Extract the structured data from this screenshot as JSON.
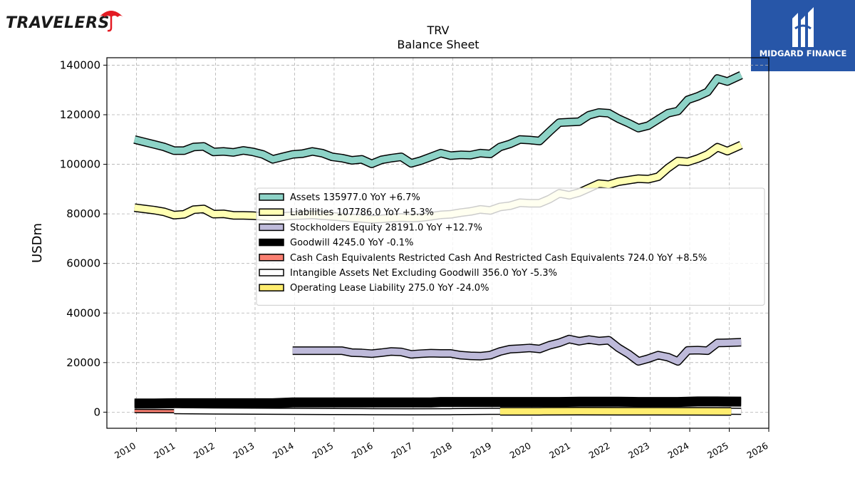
{
  "brand": {
    "left_logo_text": "TRAVELERS",
    "right_logo_text": "MIDGARD FINANCE"
  },
  "chart_data": {
    "type": "line",
    "title": "TRV",
    "subtitle": "Balance  Sheet",
    "ylabel": "USDm",
    "xlabel": "",
    "ylim": [
      -6500,
      143000
    ],
    "xlim": [
      2009.25,
      2026.0
    ],
    "yticks": [
      0,
      20000,
      40000,
      60000,
      80000,
      100000,
      120000,
      140000
    ],
    "ytick_labels": [
      "0",
      "20000",
      "40000",
      "60000",
      "80000",
      "100000",
      "120000",
      "140000"
    ],
    "xticks": [
      2010,
      2011,
      2012,
      2013,
      2014,
      2015,
      2016,
      2017,
      2018,
      2019,
      2020,
      2021,
      2022,
      2023,
      2024,
      2025,
      2026
    ],
    "xtick_labels": [
      "2010",
      "2011",
      "2012",
      "2013",
      "2014",
      "2015",
      "2016",
      "2017",
      "2018",
      "2019",
      "2020",
      "2021",
      "2022",
      "2023",
      "2024",
      "2025",
      "2026"
    ],
    "grid": true,
    "legend_position": "center-right",
    "series": [
      {
        "name": "Assets",
        "legend_label": "Assets  135977.0 YoY +6.7%",
        "color": "#8dd3c7",
        "width": 9,
        "points": [
          [
            2009.95,
            110000
          ],
          [
            2010.2,
            109000
          ],
          [
            2010.45,
            108000
          ],
          [
            2010.7,
            107000
          ],
          [
            2010.95,
            105500
          ],
          [
            2011.2,
            105500
          ],
          [
            2011.45,
            107000
          ],
          [
            2011.7,
            107200
          ],
          [
            2011.95,
            105000
          ],
          [
            2012.2,
            105200
          ],
          [
            2012.45,
            104800
          ],
          [
            2012.7,
            105600
          ],
          [
            2012.95,
            105000
          ],
          [
            2013.2,
            104000
          ],
          [
            2013.45,
            102000
          ],
          [
            2013.7,
            103000
          ],
          [
            2013.95,
            104000
          ],
          [
            2014.2,
            104300
          ],
          [
            2014.45,
            105200
          ],
          [
            2014.7,
            104500
          ],
          [
            2014.95,
            103000
          ],
          [
            2015.2,
            102500
          ],
          [
            2015.45,
            101600
          ],
          [
            2015.7,
            102000
          ],
          [
            2015.95,
            100200
          ],
          [
            2016.2,
            101800
          ],
          [
            2016.45,
            102500
          ],
          [
            2016.7,
            103000
          ],
          [
            2016.95,
            100400
          ],
          [
            2017.2,
            101500
          ],
          [
            2017.45,
            103000
          ],
          [
            2017.7,
            104500
          ],
          [
            2017.95,
            103500
          ],
          [
            2018.2,
            103800
          ],
          [
            2018.45,
            103700
          ],
          [
            2018.7,
            104500
          ],
          [
            2018.95,
            104200
          ],
          [
            2019.2,
            107000
          ],
          [
            2019.45,
            108200
          ],
          [
            2019.7,
            110000
          ],
          [
            2019.95,
            109800
          ],
          [
            2020.2,
            109400
          ],
          [
            2020.45,
            113200
          ],
          [
            2020.7,
            116800
          ],
          [
            2020.95,
            117000
          ],
          [
            2021.2,
            117200
          ],
          [
            2021.45,
            119800
          ],
          [
            2021.7,
            120900
          ],
          [
            2021.95,
            120600
          ],
          [
            2022.2,
            118400
          ],
          [
            2022.45,
            116600
          ],
          [
            2022.7,
            114600
          ],
          [
            2022.95,
            115600
          ],
          [
            2023.2,
            118100
          ],
          [
            2023.45,
            120600
          ],
          [
            2023.7,
            121500
          ],
          [
            2023.95,
            126000
          ],
          [
            2024.2,
            127400
          ],
          [
            2024.45,
            129200
          ],
          [
            2024.7,
            134600
          ],
          [
            2024.95,
            133400
          ],
          [
            2025.3,
            135977
          ]
        ]
      },
      {
        "name": "Liabilities",
        "legend_label": "Liabilities  107786.0 YoY +5.3%",
        "color": "#ffffb3",
        "width": 9,
        "points": [
          [
            2009.95,
            82500
          ],
          [
            2010.2,
            82000
          ],
          [
            2010.45,
            81500
          ],
          [
            2010.7,
            80800
          ],
          [
            2010.95,
            79500
          ],
          [
            2011.2,
            79800
          ],
          [
            2011.45,
            81700
          ],
          [
            2011.7,
            82000
          ],
          [
            2011.95,
            79900
          ],
          [
            2012.2,
            80000
          ],
          [
            2012.45,
            79400
          ],
          [
            2012.7,
            79400
          ],
          [
            2012.95,
            79300
          ],
          [
            2013.2,
            79000
          ],
          [
            2013.45,
            78700
          ],
          [
            2013.7,
            79000
          ],
          [
            2013.95,
            79300
          ],
          [
            2014.2,
            79400
          ],
          [
            2014.45,
            79600
          ],
          [
            2014.7,
            79300
          ],
          [
            2014.95,
            79000
          ],
          [
            2015.2,
            78700
          ],
          [
            2015.45,
            78300
          ],
          [
            2015.7,
            78200
          ],
          [
            2015.95,
            77800
          ],
          [
            2016.2,
            78000
          ],
          [
            2016.45,
            78300
          ],
          [
            2016.7,
            78500
          ],
          [
            2016.95,
            78300
          ],
          [
            2017.2,
            78500
          ],
          [
            2017.45,
            79000
          ],
          [
            2017.7,
            79600
          ],
          [
            2017.95,
            79800
          ],
          [
            2018.2,
            80500
          ],
          [
            2018.45,
            81000
          ],
          [
            2018.7,
            81800
          ],
          [
            2018.95,
            81400
          ],
          [
            2019.2,
            82800
          ],
          [
            2019.45,
            83300
          ],
          [
            2019.7,
            84500
          ],
          [
            2019.95,
            84300
          ],
          [
            2020.2,
            84300
          ],
          [
            2020.45,
            86000
          ],
          [
            2020.7,
            88300
          ],
          [
            2020.95,
            87500
          ],
          [
            2021.2,
            88600
          ],
          [
            2021.45,
            90400
          ],
          [
            2021.7,
            92200
          ],
          [
            2021.95,
            91800
          ],
          [
            2022.2,
            93000
          ],
          [
            2022.45,
            93600
          ],
          [
            2022.7,
            94200
          ],
          [
            2022.95,
            94000
          ],
          [
            2023.2,
            95000
          ],
          [
            2023.45,
            98500
          ],
          [
            2023.7,
            101300
          ],
          [
            2023.95,
            101000
          ],
          [
            2024.2,
            102300
          ],
          [
            2024.45,
            104000
          ],
          [
            2024.7,
            106900
          ],
          [
            2024.95,
            105300
          ],
          [
            2025.3,
            107786
          ]
        ]
      },
      {
        "name": "Stockholders Equity",
        "legend_label": "Stockholders Equity  28191.0 YoY +12.7%",
        "color": "#bebada",
        "width": 9,
        "points": [
          [
            2013.95,
            24800
          ],
          [
            2014.2,
            24800
          ],
          [
            2014.45,
            24800
          ],
          [
            2014.7,
            24800
          ],
          [
            2014.95,
            24800
          ],
          [
            2015.2,
            24800
          ],
          [
            2015.45,
            24000
          ],
          [
            2015.7,
            23900
          ],
          [
            2015.95,
            23600
          ],
          [
            2016.2,
            24000
          ],
          [
            2016.45,
            24500
          ],
          [
            2016.7,
            24300
          ],
          [
            2016.95,
            23300
          ],
          [
            2017.2,
            23600
          ],
          [
            2017.45,
            23800
          ],
          [
            2017.7,
            23700
          ],
          [
            2017.95,
            23700
          ],
          [
            2018.2,
            23000
          ],
          [
            2018.45,
            22700
          ],
          [
            2018.7,
            22600
          ],
          [
            2018.95,
            23000
          ],
          [
            2019.2,
            24500
          ],
          [
            2019.45,
            25400
          ],
          [
            2019.7,
            25600
          ],
          [
            2019.95,
            25900
          ],
          [
            2020.2,
            25500
          ],
          [
            2020.45,
            27000
          ],
          [
            2020.7,
            28000
          ],
          [
            2020.95,
            29500
          ],
          [
            2021.2,
            28600
          ],
          [
            2021.45,
            29300
          ],
          [
            2021.7,
            28700
          ],
          [
            2021.95,
            29000
          ],
          [
            2022.2,
            25900
          ],
          [
            2022.45,
            23500
          ],
          [
            2022.7,
            20500
          ],
          [
            2022.95,
            21600
          ],
          [
            2023.2,
            23000
          ],
          [
            2023.45,
            22200
          ],
          [
            2023.7,
            20500
          ],
          [
            2023.95,
            24900
          ],
          [
            2024.2,
            25000
          ],
          [
            2024.45,
            24800
          ],
          [
            2024.7,
            27900
          ],
          [
            2024.95,
            28000
          ],
          [
            2025.3,
            28191
          ]
        ]
      },
      {
        "name": "Goodwill",
        "legend_label": "Goodwill  4245.0 YoY -0.1%",
        "color": "#000000",
        "width": 11,
        "points": [
          [
            2009.95,
            3500
          ],
          [
            2010.45,
            3500
          ],
          [
            2010.95,
            3600
          ],
          [
            2011.45,
            3600
          ],
          [
            2011.95,
            3600
          ],
          [
            2012.45,
            3600
          ],
          [
            2012.95,
            3600
          ],
          [
            2013.45,
            3600
          ],
          [
            2013.95,
            3900
          ],
          [
            2014.45,
            3900
          ],
          [
            2014.95,
            3900
          ],
          [
            2015.45,
            3900
          ],
          [
            2015.95,
            3900
          ],
          [
            2016.45,
            3900
          ],
          [
            2016.95,
            3900
          ],
          [
            2017.45,
            3900
          ],
          [
            2017.7,
            4100
          ],
          [
            2018.2,
            4100
          ],
          [
            2018.7,
            4100
          ],
          [
            2019.2,
            4100
          ],
          [
            2019.7,
            4100
          ],
          [
            2020.2,
            4100
          ],
          [
            2020.7,
            4100
          ],
          [
            2021.2,
            4200
          ],
          [
            2021.7,
            4200
          ],
          [
            2022.2,
            4200
          ],
          [
            2022.7,
            4100
          ],
          [
            2023.2,
            4100
          ],
          [
            2023.7,
            4100
          ],
          [
            2024.2,
            4300
          ],
          [
            2024.7,
            4300
          ],
          [
            2025.3,
            4245
          ]
        ]
      },
      {
        "name": "Cash Cash Equivalents Restricted Cash And Restricted Cash Equivalents",
        "legend_label": "Cash Cash Equivalents Restricted Cash And Restricted Cash Equivalents  724.0 YoY +8.5%",
        "color": "#fb8072",
        "width": 3,
        "points": [
          [
            2009.95,
            450
          ],
          [
            2010.95,
            400
          ],
          [
            2011.95,
            350
          ],
          [
            2012.95,
            350
          ],
          [
            2013.95,
            380
          ],
          [
            2014.95,
            370
          ],
          [
            2015.95,
            360
          ],
          [
            2016.95,
            350
          ],
          [
            2017.95,
            360
          ],
          [
            2018.95,
            370
          ],
          [
            2019.95,
            600
          ],
          [
            2020.95,
            700
          ],
          [
            2021.95,
            800
          ],
          [
            2022.95,
            700
          ],
          [
            2023.95,
            650
          ],
          [
            2024.95,
            700
          ],
          [
            2025.3,
            724
          ]
        ]
      },
      {
        "name": "Intangible Assets Net Excluding Goodwill",
        "legend_label": "Intangible Assets Net Excluding Goodwill  356.0 YoY -5.3%",
        "color": "#ffffff",
        "width": 7,
        "points": [
          [
            2010.95,
            600
          ],
          [
            2011.95,
            500
          ],
          [
            2012.95,
            400
          ],
          [
            2013.95,
            300
          ],
          [
            2014.95,
            250
          ],
          [
            2015.95,
            200
          ],
          [
            2016.95,
            150
          ],
          [
            2017.95,
            200
          ],
          [
            2018.95,
            300
          ],
          [
            2019.95,
            350
          ],
          [
            2020.95,
            400
          ],
          [
            2021.95,
            420
          ],
          [
            2022.95,
            390
          ],
          [
            2023.95,
            370
          ],
          [
            2024.95,
            360
          ],
          [
            2025.3,
            356
          ]
        ]
      },
      {
        "name": "Operating Lease Liability",
        "legend_label": "Operating Lease Liability  275.0 YoY -24.0%",
        "color": "#ffed6f",
        "width": 9,
        "points": [
          [
            2019.2,
            300
          ],
          [
            2020.2,
            350
          ],
          [
            2021.2,
            400
          ],
          [
            2022.2,
            380
          ],
          [
            2023.2,
            360
          ],
          [
            2024.2,
            330
          ],
          [
            2025.05,
            275
          ]
        ]
      }
    ]
  }
}
